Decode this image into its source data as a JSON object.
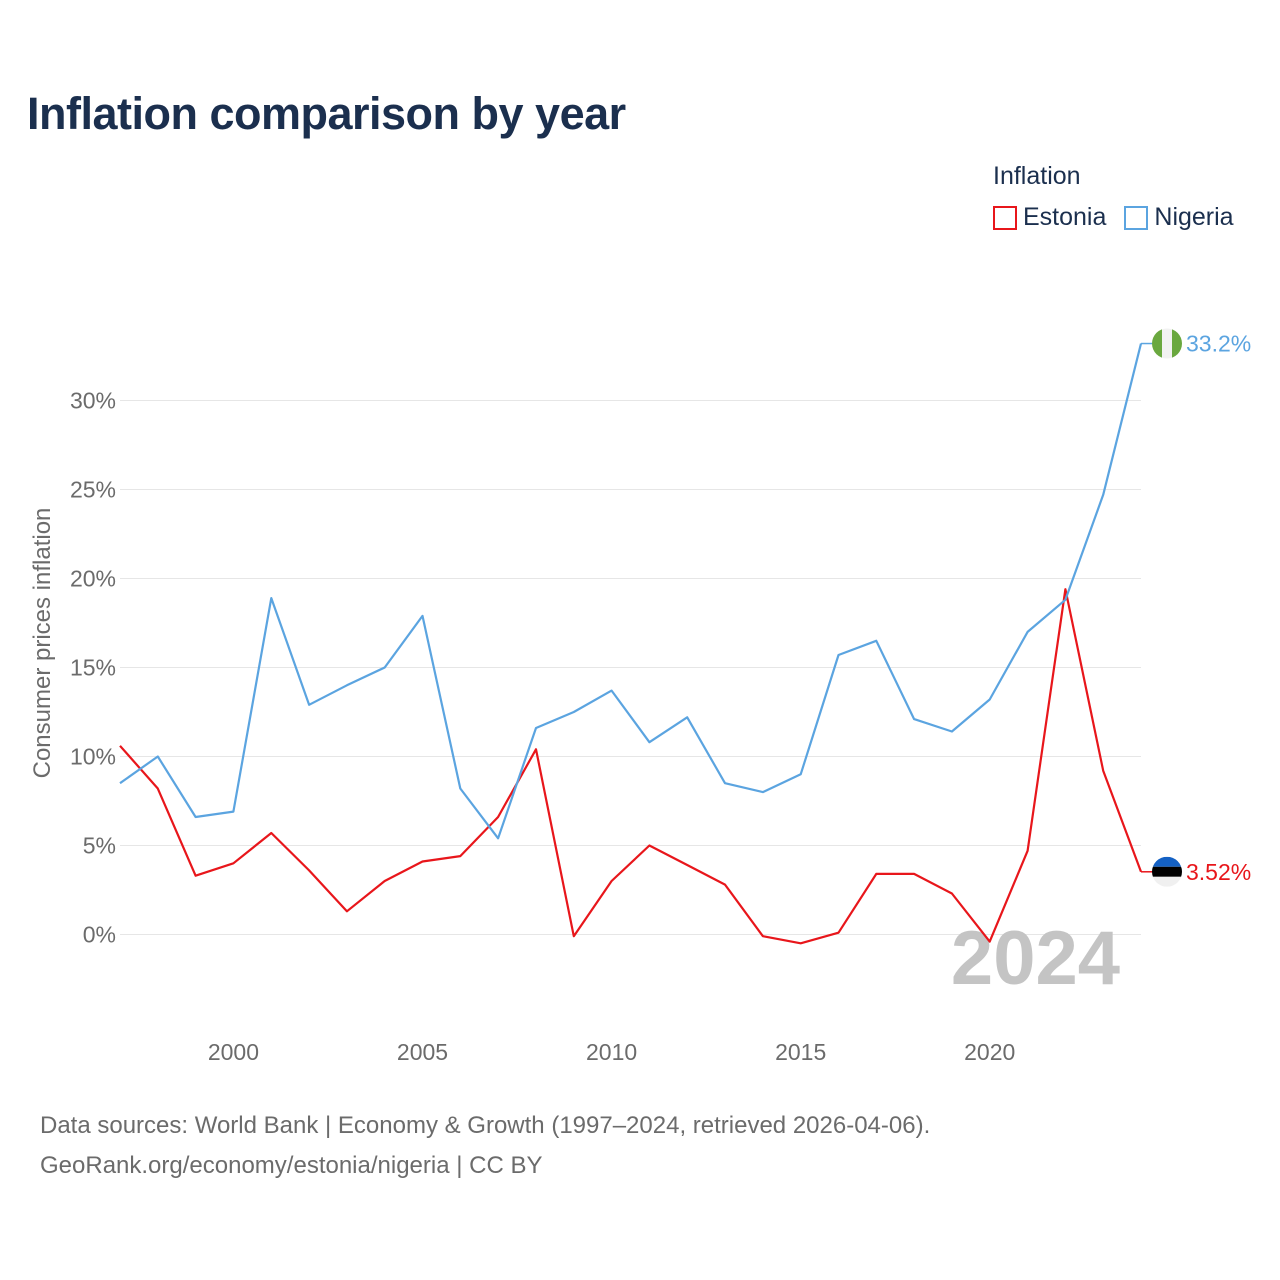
{
  "chart_data": {
    "type": "line",
    "title": "Inflation comparison by year",
    "legend_title": "Inflation",
    "ylabel": "Consumer prices inflation",
    "xlabel": "",
    "xlim": [
      1997,
      2024
    ],
    "ylim": [
      -2.7,
      35
    ],
    "x_ticks": [
      2000,
      2005,
      2010,
      2015,
      2020
    ],
    "y_ticks": [
      0,
      5,
      10,
      15,
      20,
      25,
      30
    ],
    "y_tick_labels": [
      "0%",
      "5%",
      "10%",
      "15%",
      "20%",
      "25%",
      "30%"
    ],
    "x": [
      1997,
      1998,
      1999,
      2000,
      2001,
      2002,
      2003,
      2004,
      2005,
      2006,
      2007,
      2008,
      2009,
      2010,
      2011,
      2012,
      2013,
      2014,
      2015,
      2016,
      2017,
      2018,
      2019,
      2020,
      2021,
      2022,
      2023,
      2024
    ],
    "series": [
      {
        "name": "Estonia",
        "color": "#e8161b",
        "values": [
          10.6,
          8.2,
          3.3,
          4.0,
          5.7,
          3.6,
          1.3,
          3.0,
          4.1,
          4.4,
          6.6,
          10.4,
          -0.1,
          3.0,
          5.0,
          3.9,
          2.8,
          -0.1,
          -0.5,
          0.1,
          3.4,
          3.4,
          2.3,
          -0.4,
          4.7,
          19.4,
          9.2,
          3.52
        ],
        "end_label": "3.52%"
      },
      {
        "name": "Nigeria",
        "color": "#5ba4e0",
        "values": [
          8.5,
          10.0,
          6.6,
          6.9,
          18.9,
          12.9,
          14.0,
          15.0,
          17.9,
          8.2,
          5.4,
          11.6,
          12.5,
          13.7,
          10.8,
          12.2,
          8.5,
          8.0,
          9.0,
          15.7,
          16.5,
          12.1,
          11.4,
          13.2,
          17.0,
          18.8,
          24.7,
          33.2
        ],
        "end_label": "33.2%"
      }
    ],
    "watermark_year": "2024"
  },
  "footer": {
    "line1": "Data sources: World Bank | Economy & Growth (1997–2024, retrieved 2026-04-06).",
    "line2": "GeoRank.org/economy/estonia/nigeria | CC BY"
  },
  "flags": {
    "nigeria_icon": "nigeria-flag-icon",
    "estonia_icon": "estonia-flag-icon"
  }
}
